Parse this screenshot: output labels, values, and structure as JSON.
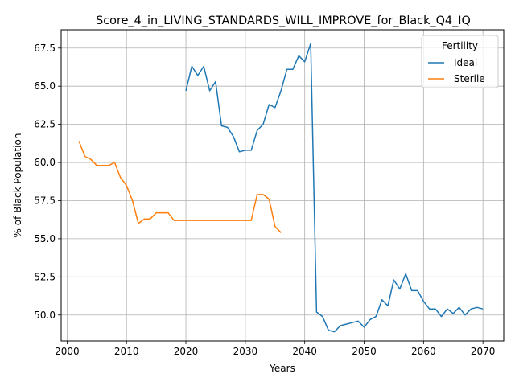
{
  "chart_data": {
    "type": "line",
    "title": "Score_4_in_LIVING_STANDARDS_WILL_IMPROVE_for_Black_Q4_IQ",
    "xlabel": "Years",
    "ylabel": "% of Black Population",
    "xlim": [
      1999,
      2073.5
    ],
    "ylim": [
      48.3,
      68.7
    ],
    "xticks": [
      2000,
      2010,
      2020,
      2030,
      2040,
      2050,
      2060,
      2070
    ],
    "yticks": [
      50.0,
      52.5,
      55.0,
      57.5,
      60.0,
      62.5,
      65.0,
      67.5
    ],
    "ytick_labels": [
      "50.0",
      "52.5",
      "55.0",
      "57.5",
      "60.0",
      "62.5",
      "65.0",
      "67.5"
    ],
    "grid": true,
    "legend": {
      "title": "Fertility",
      "placement": "top-right"
    },
    "series": [
      {
        "name": "Ideal",
        "color": "#1f77b4",
        "x": [
          2020,
          2021,
          2022,
          2023,
          2024,
          2025,
          2026,
          2027,
          2028,
          2029,
          2030,
          2031,
          2032,
          2033,
          2034,
          2035,
          2036,
          2037,
          2038,
          2039,
          2040,
          2041,
          2042,
          2043,
          2044,
          2045,
          2046,
          2047,
          2048,
          2049,
          2050,
          2051,
          2052,
          2053,
          2054,
          2055,
          2056,
          2057,
          2058,
          2059,
          2060,
          2061,
          2062,
          2063,
          2064,
          2065,
          2066,
          2067,
          2068,
          2069,
          2070
        ],
        "y": [
          64.7,
          66.3,
          65.7,
          66.3,
          64.7,
          65.3,
          62.4,
          62.3,
          61.7,
          60.7,
          60.8,
          60.8,
          62.1,
          62.5,
          63.8,
          63.6,
          64.7,
          66.1,
          66.1,
          67.0,
          66.6,
          67.8,
          50.2,
          49.9,
          49.0,
          48.9,
          49.3,
          49.4,
          49.5,
          49.6,
          49.2,
          49.7,
          49.9,
          51.0,
          50.6,
          52.3,
          51.7,
          52.7,
          51.6,
          51.6,
          50.9,
          50.4,
          50.4,
          49.9,
          50.4,
          50.1,
          50.5,
          50.0,
          50.4,
          50.5,
          50.4
        ]
      },
      {
        "name": "Sterile",
        "color": "#ff7f0e",
        "x": [
          2002,
          2003,
          2004,
          2005,
          2006,
          2007,
          2008,
          2009,
          2010,
          2011,
          2012,
          2013,
          2014,
          2015,
          2016,
          2017,
          2018,
          2019,
          2020,
          2021,
          2022,
          2023,
          2024,
          2025,
          2026,
          2027,
          2028,
          2029,
          2030,
          2031,
          2032,
          2033,
          2034,
          2035,
          2036
        ],
        "y": [
          61.4,
          60.4,
          60.2,
          59.8,
          59.8,
          59.8,
          60.0,
          59.0,
          58.5,
          57.5,
          56.0,
          56.3,
          56.3,
          56.7,
          56.7,
          56.7,
          56.2,
          56.2,
          56.2,
          56.2,
          56.2,
          56.2,
          56.2,
          56.2,
          56.2,
          56.2,
          56.2,
          56.2,
          56.2,
          56.2,
          57.9,
          57.9,
          57.6,
          55.8,
          55.4
        ]
      }
    ]
  }
}
